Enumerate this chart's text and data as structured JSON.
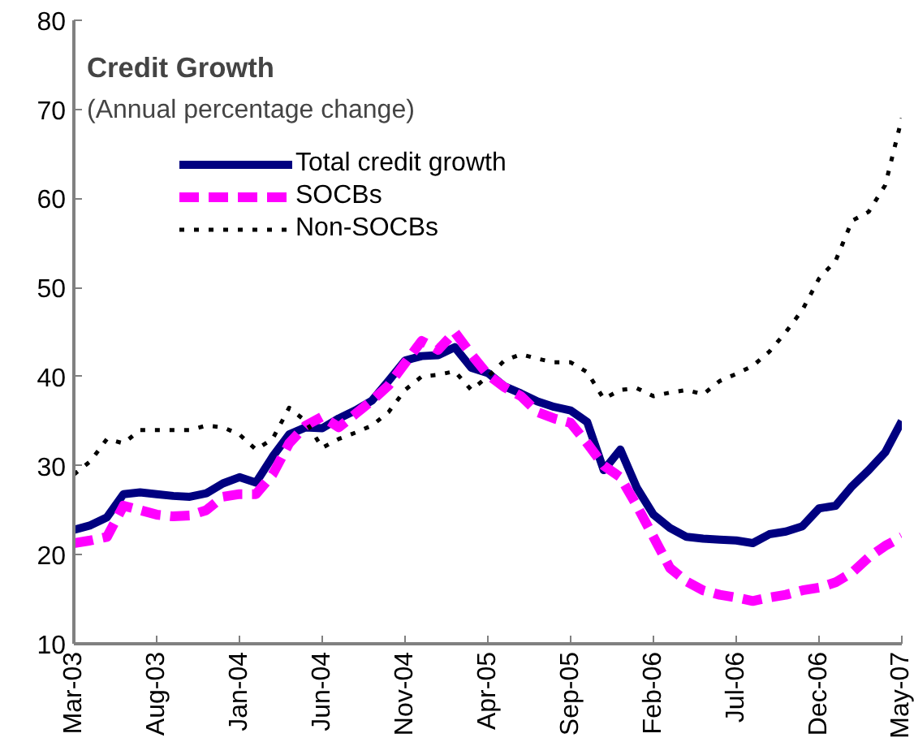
{
  "chart_data": {
    "type": "line",
    "title": "Credit Growth",
    "subtitle": "(Annual percentage change)",
    "categories": [
      "Mar-03",
      null,
      null,
      null,
      null,
      "Aug-03",
      null,
      null,
      null,
      null,
      "Jan-04",
      null,
      null,
      null,
      null,
      "Jun-04",
      null,
      null,
      null,
      null,
      "Nov-04",
      null,
      null,
      null,
      null,
      "Apr-05",
      null,
      null,
      null,
      null,
      "Sep-05",
      null,
      null,
      null,
      null,
      "Feb-06",
      null,
      null,
      null,
      null,
      "Jul-06",
      null,
      null,
      null,
      null,
      "Dec-06",
      null,
      null,
      null,
      null,
      "May-07"
    ],
    "series": [
      {
        "name": "Total credit growth",
        "color": "#000080",
        "line_style": "solid",
        "values": [
          22.8,
          23.3,
          24.2,
          26.8,
          27,
          26.8,
          26.6,
          26.5,
          26.9,
          28,
          28.7,
          28.1,
          31,
          33.5,
          34.3,
          34.2,
          35.3,
          36.2,
          37.3,
          39.5,
          41.8,
          42.3,
          42.4,
          43.3,
          41,
          40.4,
          38.9,
          38.1,
          37.2,
          36.6,
          36.2,
          34.9,
          29.5,
          31.8,
          27.5,
          24.5,
          23,
          22,
          21.8,
          21.7,
          21.6,
          21.3,
          22.3,
          22.6,
          23.2,
          25.2,
          25.5,
          27.7,
          29.5,
          31.5,
          35
        ]
      },
      {
        "name": "SOCBs",
        "color": "#ff00ff",
        "line_style": "dashed",
        "values": [
          21.3,
          21.6,
          22,
          25.5,
          25,
          24.5,
          24.3,
          24.4,
          25,
          26.5,
          26.8,
          26.8,
          29,
          32.5,
          34.5,
          35.5,
          34.3,
          35.8,
          37.3,
          39,
          41.5,
          44,
          43,
          45,
          42.5,
          40.2,
          38.8,
          37.8,
          36,
          35.3,
          34.8,
          32.5,
          30,
          28.7,
          25.5,
          22,
          18.5,
          17,
          16,
          15.5,
          15.2,
          14.8,
          15.2,
          15.5,
          16,
          16.3,
          16.9,
          18,
          19.7,
          21,
          22
        ]
      },
      {
        "name": "Non-SOCBs",
        "color": "#000000",
        "line_style": "dotted",
        "values": [
          29,
          30.5,
          33,
          32.5,
          34,
          34,
          34,
          34,
          34.5,
          34.3,
          33.5,
          31.8,
          33,
          36.5,
          35,
          32,
          33,
          33.7,
          34.5,
          36,
          38.5,
          40,
          40.2,
          40.6,
          38.5,
          40,
          41.8,
          42.5,
          42,
          41.6,
          41.6,
          40.5,
          37.5,
          38.5,
          38.7,
          37.8,
          38.2,
          38.5,
          38,
          39.5,
          40.3,
          41.2,
          42.8,
          45,
          47.5,
          51,
          53,
          57.5,
          58.5,
          61.5,
          69
        ]
      }
    ],
    "ylim": [
      10,
      80
    ],
    "yticks": [
      10,
      20,
      30,
      40,
      50,
      60,
      70,
      80
    ],
    "grid": false,
    "legend": "top left"
  }
}
